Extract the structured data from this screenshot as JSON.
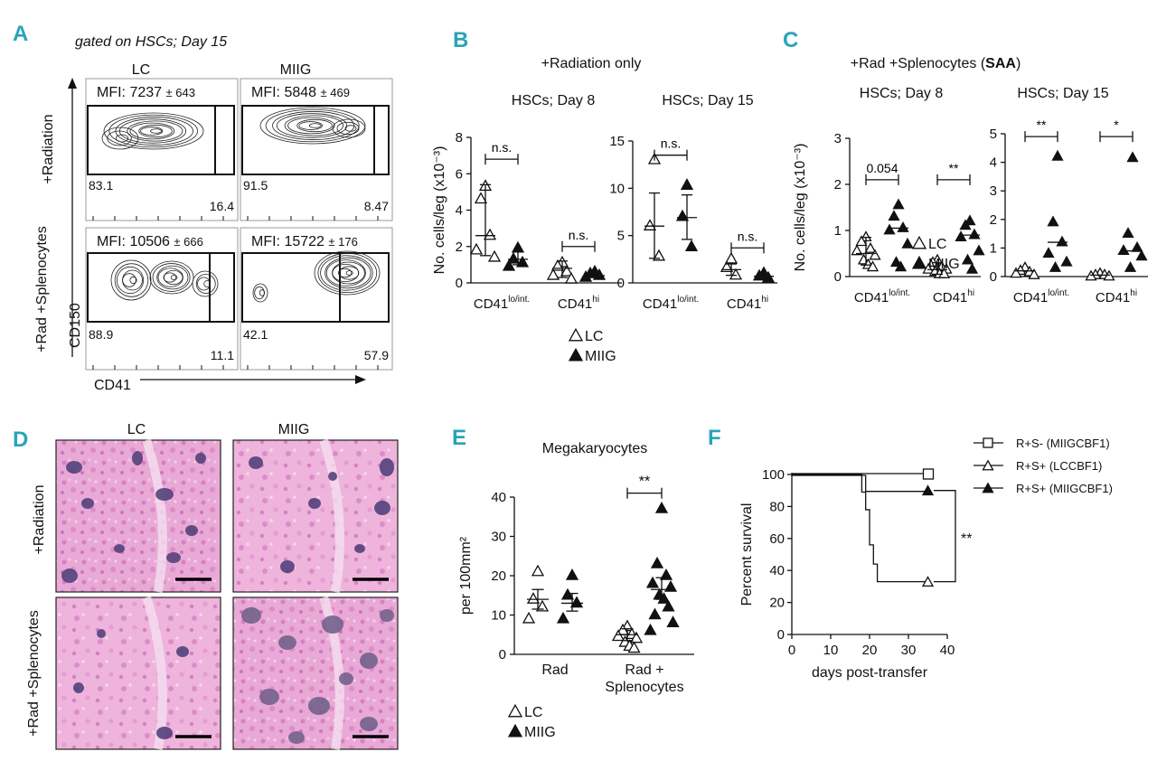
{
  "panels": {
    "A": {
      "letter": "A",
      "header": "gated on HSCs; Day 15",
      "columns": [
        "LC",
        "MIIG"
      ],
      "rows": [
        "+Radiation",
        "+Rad +Splenocytes"
      ],
      "cells": [
        {
          "mfi": "MFI: 7237",
          "sd": "± 643",
          "left": "83.1",
          "right": "16.4"
        },
        {
          "mfi": "MFI: 5848",
          "sd": "± 469",
          "left": "91.5",
          "right": "8.47"
        },
        {
          "mfi": "MFI: 10506",
          "sd": "± 666",
          "left": "88.9",
          "right": "11.1"
        },
        {
          "mfi": "MFI: 15722",
          "sd": "± 176",
          "left": "42.1",
          "right": "57.9"
        }
      ],
      "xaxis": "CD41",
      "yaxis": "CD150"
    },
    "B": {
      "letter": "B",
      "title": "+Radiation only"
    },
    "C": {
      "letter": "C",
      "title_pre": "+Rad +Splenocytes (",
      "title_bold": "SAA",
      "title_post": ")"
    },
    "D": {
      "letter": "D",
      "columns": [
        "LC",
        "MIIG"
      ],
      "rows": [
        "+Radiation",
        "+Rad +Splenocytes"
      ]
    },
    "E": {
      "letter": "E"
    },
    "F": {
      "letter": "F"
    }
  },
  "legend_groups": {
    "lc": "LC",
    "miig": "MIIG"
  },
  "chart_data": [
    {
      "id": "B1",
      "type": "scatter",
      "title": "HSCs; Day 8",
      "ylabel": "No. cells/leg (x10⁻³)",
      "ylim": [
        0,
        8
      ],
      "yticks": [
        0,
        2,
        4,
        6,
        8
      ],
      "categories": [
        {
          "base": "CD41",
          "sup": "lo/int."
        },
        {
          "base": "CD41",
          "sup": "hi"
        }
      ],
      "series": [
        {
          "name": "LC",
          "values": [
            [
              5.3,
              4.6,
              2.6,
              1.8,
              1.4
            ],
            [
              1.1,
              0.9,
              0.6,
              0.4,
              0.2
            ]
          ]
        },
        {
          "name": "MIIG",
          "values": [
            [
              1.9,
              1.3,
              1.1,
              0.9
            ],
            [
              0.6,
              0.5,
              0.4,
              0.3
            ]
          ]
        }
      ],
      "summary": {
        "LC": [
          {
            "mid": 2.6,
            "lo": 1.5,
            "hi": 5.4
          },
          {
            "mid": 0.8,
            "lo": 0.3,
            "hi": 1.2
          }
        ],
        "MIIG": [
          {
            "mid": 1.3,
            "lo": 1.0,
            "hi": 1.7
          },
          {
            "mid": 0.4,
            "lo": 0.3,
            "hi": 0.5
          }
        ]
      },
      "annotations": [
        "n.s.",
        "n.s."
      ]
    },
    {
      "id": "B2",
      "type": "scatter",
      "title": "HSCs; Day 15",
      "ylim": [
        0,
        15
      ],
      "yticks": [
        0,
        5,
        10,
        15
      ],
      "categories": [
        {
          "base": "CD41",
          "sup": "lo/int."
        },
        {
          "base": "CD41",
          "sup": "hi"
        }
      ],
      "series": [
        {
          "name": "LC",
          "values": [
            [
              13.0,
              6.0,
              2.8
            ],
            [
              2.5,
              1.6,
              0.8
            ]
          ]
        },
        {
          "name": "MIIG",
          "values": [
            [
              10.3,
              7.0,
              3.8
            ],
            [
              1.0,
              0.7,
              0.5
            ]
          ]
        }
      ],
      "summary": {
        "LC": [
          {
            "mid": 6.0,
            "lo": 2.6,
            "hi": 9.5
          },
          {
            "mid": 1.4,
            "lo": 0.8,
            "hi": 2.0
          }
        ],
        "MIIG": [
          {
            "mid": 6.9,
            "lo": 4.6,
            "hi": 9.3
          },
          {
            "mid": 0.7,
            "lo": 0.5,
            "hi": 0.9
          }
        ]
      },
      "annotations": [
        "n.s.",
        "n.s."
      ]
    },
    {
      "id": "C1",
      "type": "scatter",
      "title": "HSCs; Day 8",
      "ylabel": "No. cells/leg (x10⁻³)",
      "ylim": [
        0,
        3
      ],
      "yticks": [
        0,
        1,
        2,
        3
      ],
      "categories": [
        {
          "base": "CD41",
          "sup": "lo/int."
        },
        {
          "base": "CD41",
          "sup": "hi"
        }
      ],
      "series": [
        {
          "name": "LC",
          "values": [
            [
              0.85,
              0.75,
              0.6,
              0.55,
              0.45,
              0.35,
              0.25,
              0.2
            ],
            [
              0.35,
              0.3,
              0.2,
              0.15,
              0.15,
              0.1,
              0.05,
              0.05
            ]
          ]
        },
        {
          "name": "MIIG",
          "values": [
            [
              1.55,
              1.3,
              1.05,
              1.0,
              0.7,
              0.3,
              0.2
            ],
            [
              1.2,
              1.1,
              0.9,
              0.85,
              0.55,
              0.35,
              0.15
            ]
          ]
        }
      ],
      "summary": {
        "LC": [
          {
            "mid": 0.5,
            "lo": 0.25,
            "hi": 0.85
          },
          {
            "mid": 0.15,
            "lo": 0.05,
            "hi": 0.3
          }
        ],
        "MIIG": [
          {
            "mid": 1.05
          },
          {
            "mid": 0.9
          }
        ]
      },
      "annotations": [
        "0.054",
        "**"
      ]
    },
    {
      "id": "C2",
      "type": "scatter",
      "title": "HSCs; Day 15",
      "ylim": [
        0,
        5
      ],
      "yticks": [
        0,
        1,
        2,
        3,
        4,
        5
      ],
      "categories": [
        {
          "base": "CD41",
          "sup": "lo/int."
        },
        {
          "base": "CD41",
          "sup": "hi"
        }
      ],
      "series": [
        {
          "name": "LC",
          "values": [
            [
              0.3,
              0.2,
              0.15,
              0.1,
              0.05
            ],
            [
              0.1,
              0.05,
              0.05,
              0.0,
              0.0
            ]
          ]
        },
        {
          "name": "MIIG",
          "values": [
            [
              4.2,
              1.9,
              1.2,
              0.8,
              0.5,
              0.3
            ],
            [
              4.15,
              1.5,
              1.0,
              0.9,
              0.7,
              0.3
            ]
          ]
        }
      ],
      "summary": {
        "LC": [
          {
            "mid": 0.2
          },
          {
            "mid": 0.05
          }
        ],
        "MIIG": [
          {
            "mid": 1.2
          },
          {
            "mid": 0.9
          }
        ]
      },
      "annotations": [
        "**",
        "*"
      ]
    },
    {
      "id": "E",
      "type": "scatter",
      "title": "Megakaryocytes",
      "ylabel": "per 100mm²",
      "ylim": [
        0,
        40
      ],
      "yticks": [
        0,
        10,
        20,
        30,
        40
      ],
      "categories": [
        "Rad",
        "Rad + Splenocytes"
      ],
      "series": [
        {
          "name": "LC",
          "values": [
            [
              21,
              14,
              12,
              9
            ],
            [
              7,
              6,
              5,
              4.5,
              4,
              3,
              2,
              1.5
            ]
          ]
        },
        {
          "name": "MIIG",
          "values": [
            [
              20,
              15,
              13,
              9
            ],
            [
              37,
              23,
              20,
              18,
              17,
              15,
              14,
              12,
              10,
              8,
              6
            ]
          ]
        }
      ],
      "summary": {
        "LC": [
          {
            "mid": 14,
            "lo": 11.5,
            "hi": 16.5
          },
          {
            "mid": 5,
            "lo": 3.5,
            "hi": 6.5
          }
        ],
        "MIIG": [
          {
            "mid": 13,
            "lo": 11,
            "hi": 15.5
          },
          {
            "mid": 16.5,
            "lo": 14,
            "hi": 19.5
          }
        ]
      },
      "annotations": [
        "**"
      ]
    },
    {
      "id": "F",
      "type": "line",
      "xlabel": "days post-transfer",
      "ylabel": "Percent survival",
      "xlim": [
        0,
        40
      ],
      "ylim": [
        0,
        100
      ],
      "xticks": [
        0,
        10,
        20,
        30,
        40
      ],
      "yticks": [
        0,
        20,
        40,
        60,
        80,
        100
      ],
      "series": [
        {
          "name": "R+S- (MIIGCBF1)",
          "marker": "square",
          "points": [
            [
              0,
              100
            ],
            [
              35,
              100
            ]
          ]
        },
        {
          "name": "R+S+ (LCCBF1)",
          "marker": "triangle-open",
          "points": [
            [
              0,
              100
            ],
            [
              18,
              100
            ],
            [
              18,
              89
            ],
            [
              19,
              89
            ],
            [
              19,
              78
            ],
            [
              20,
              78
            ],
            [
              20,
              56
            ],
            [
              21,
              56
            ],
            [
              21,
              44
            ],
            [
              22,
              44
            ],
            [
              22,
              33
            ],
            [
              35,
              33
            ]
          ]
        },
        {
          "name": "R+S+ (MIIGCBF1)",
          "marker": "triangle-filled",
          "points": [
            [
              0,
              100
            ],
            [
              19,
              100
            ],
            [
              19,
              90
            ],
            [
              35,
              90
            ]
          ]
        }
      ],
      "annotations": [
        "**"
      ]
    }
  ]
}
